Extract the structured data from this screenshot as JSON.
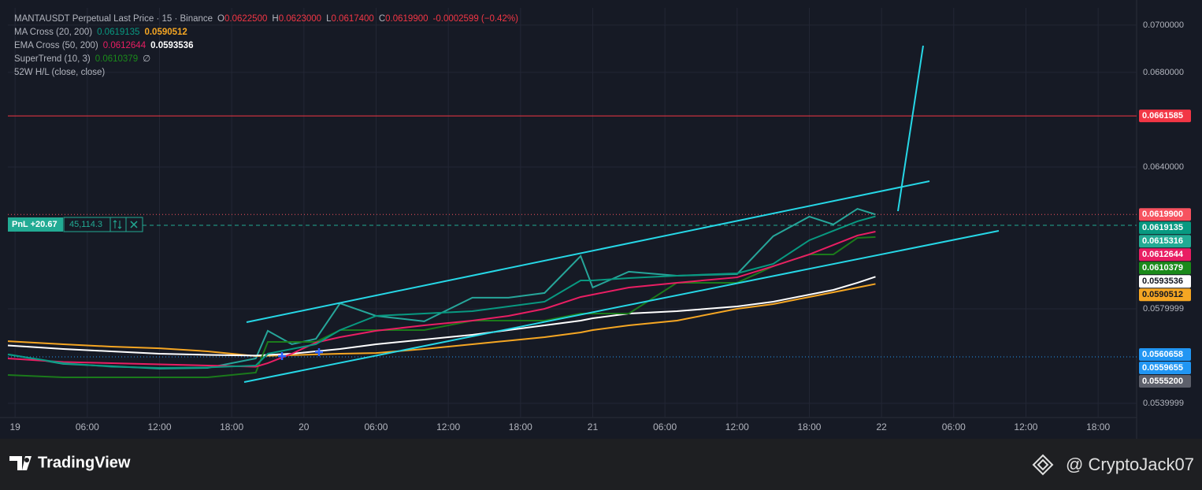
{
  "header": {
    "symbol": "MANTAUSDT Perpetual Last Price · 15 · Binance",
    "ohlc": [
      "O",
      "0.0622500",
      "H",
      "0.0623000",
      "L",
      "0.0617400",
      "C",
      "0.0619900"
    ],
    "change": "-0.0002599 (−0.42%)",
    "indicators": [
      {
        "label": "MA Cross (20, 200)",
        "values": [
          "0.0619135",
          "0.0590512"
        ]
      },
      {
        "label": "EMA Cross (50, 200)",
        "values": [
          "0.0612644",
          "0.0593536"
        ]
      },
      {
        "label": "SuperTrend (10, 3)",
        "values": [
          "0.0610379",
          "∅"
        ]
      },
      {
        "label": "52W H/L (close, close)",
        "values": []
      }
    ]
  },
  "position": {
    "pnl": "PnL +20.67",
    "qty": "45,114.3"
  },
  "chart_data": {
    "type": "line",
    "x": [
      -0.6,
      4,
      8,
      12,
      16,
      20,
      21,
      23,
      25,
      27,
      30,
      34,
      38,
      41,
      44,
      47,
      48,
      51,
      55,
      60,
      63,
      66,
      68,
      70,
      71.5
    ],
    "series": [
      {
        "color": "#26a69a",
        "values": [
          0.05607,
          0.05567,
          0.05557,
          0.05547,
          0.0555,
          0.0559,
          0.05707,
          0.0565,
          0.05673,
          0.05823,
          0.0577,
          0.05747,
          0.05847,
          0.05847,
          0.05867,
          0.06023,
          0.0589,
          0.05957,
          0.0594,
          0.05947,
          0.06107,
          0.0619,
          0.06157,
          0.06223,
          0.06199
        ]
      },
      {
        "color": "#f5a623",
        "values": [
          0.05663,
          0.0565,
          0.0564,
          0.05633,
          0.0562,
          0.056,
          0.05601,
          0.05604,
          0.05607,
          0.0561,
          0.05613,
          0.0563,
          0.0565,
          0.05665,
          0.0568,
          0.057,
          0.0571,
          0.0573,
          0.0575,
          0.058,
          0.0582,
          0.0585,
          0.0587,
          0.0589,
          0.0590512
        ]
      },
      {
        "color": "#ffffff",
        "values": [
          0.05645,
          0.0563,
          0.0562,
          0.0561,
          0.05605,
          0.05602,
          0.05605,
          0.0561,
          0.0562,
          0.0563,
          0.0565,
          0.0567,
          0.0569,
          0.0571,
          0.0573,
          0.0575,
          0.0576,
          0.0578,
          0.0579,
          0.0581,
          0.0583,
          0.0586,
          0.0588,
          0.0591,
          0.0593536
        ]
      },
      {
        "color": "#1b7a1b",
        "values": [
          0.0552,
          0.0551,
          0.0551,
          0.0551,
          0.0551,
          0.0553,
          0.0566,
          0.0566,
          0.0566,
          0.0571,
          0.0571,
          0.0571,
          0.0575,
          0.0575,
          0.0575,
          0.0578,
          0.0578,
          0.0578,
          0.0591,
          0.0591,
          0.0598,
          0.0603,
          0.0603,
          0.061,
          0.0610379
        ]
      },
      {
        "color": "#e91e63",
        "values": [
          0.0559,
          0.05575,
          0.0557,
          0.05565,
          0.0556,
          0.05555,
          0.0557,
          0.0561,
          0.05657,
          0.0568,
          0.05707,
          0.0573,
          0.0575,
          0.0577,
          0.058,
          0.0585,
          0.0586,
          0.0589,
          0.0591,
          0.05933,
          0.0598,
          0.0603,
          0.0607,
          0.0611,
          0.0612644
        ]
      },
      {
        "color": "#089981",
        "values": [
          0.05607,
          0.0557,
          0.05555,
          0.0555,
          0.05552,
          0.0556,
          0.0561,
          0.0563,
          0.0565,
          0.0571,
          0.0577,
          0.0578,
          0.0579,
          0.0581,
          0.0583,
          0.0592,
          0.0592,
          0.0593,
          0.0594,
          0.0595,
          0.0599,
          0.0609,
          0.0613,
          0.0617,
          0.0619135
        ]
      }
    ],
    "xlim": [
      -0.6,
      93.2
    ],
    "ylim": [
      0.0534,
      0.07073
    ],
    "xticks": [
      {
        "value": 0,
        "label": "19"
      },
      {
        "value": 6,
        "label": "06:00"
      },
      {
        "value": 12,
        "label": "12:00"
      },
      {
        "value": 18,
        "label": "18:00"
      },
      {
        "value": 24,
        "label": "20"
      },
      {
        "value": 30,
        "label": "06:00"
      },
      {
        "value": 36,
        "label": "12:00"
      },
      {
        "value": 42,
        "label": "18:00"
      },
      {
        "value": 48,
        "label": "21"
      },
      {
        "value": 54,
        "label": "06:00"
      },
      {
        "value": 60,
        "label": "12:00"
      },
      {
        "value": 66,
        "label": "18:00"
      },
      {
        "value": 72,
        "label": "22"
      },
      {
        "value": 78,
        "label": "06:00"
      },
      {
        "value": 84,
        "label": "12:00"
      },
      {
        "value": 90,
        "label": "18:00"
      }
    ],
    "yticks": [
      {
        "value": 0.07,
        "label": "0.0700000"
      },
      {
        "value": 0.068,
        "label": "0.0680000"
      },
      {
        "value": 0.064,
        "label": "0.0640000"
      },
      {
        "value": 0.058,
        "label": "0.0579999"
      },
      {
        "value": 0.054,
        "label": "0.0539999"
      }
    ],
    "grid": true,
    "price_labels": [
      {
        "value": 0.0661585,
        "label": "0.0661585",
        "color": "#f23645",
        "line": "solid"
      },
      {
        "value": 0.06199,
        "label": "0.0619900",
        "color": "#f7525f",
        "line": "dotted"
      },
      {
        "value": 0.0619135,
        "label": "0.0619135",
        "color": "#089981"
      },
      {
        "value": 0.0615316,
        "label": "0.0615316",
        "color": "#22ab94",
        "line": "dashed"
      },
      {
        "value": 0.0612644,
        "label": "0.0612644",
        "color": "#e91e63"
      },
      {
        "value": 0.0610379,
        "label": "0.0610379",
        "color": "#1b8a1b"
      },
      {
        "value": 0.0593536,
        "label": "0.0593536",
        "color": "#ffffff"
      },
      {
        "value": 0.0590512,
        "label": "0.0590512",
        "color": "#f5a623"
      },
      {
        "value": 0.0560658,
        "label": "0.0560658",
        "color": "#2196f3"
      },
      {
        "value": 0.0559655,
        "label": "0.0559655",
        "color": "#2196f3",
        "line": "dotted"
      },
      {
        "value": 0.05552,
        "label": "0.0555200",
        "color": "#5d606b"
      }
    ]
  },
  "footer": {
    "brand": "TradingView",
    "author": "@ CryptoJack07"
  }
}
